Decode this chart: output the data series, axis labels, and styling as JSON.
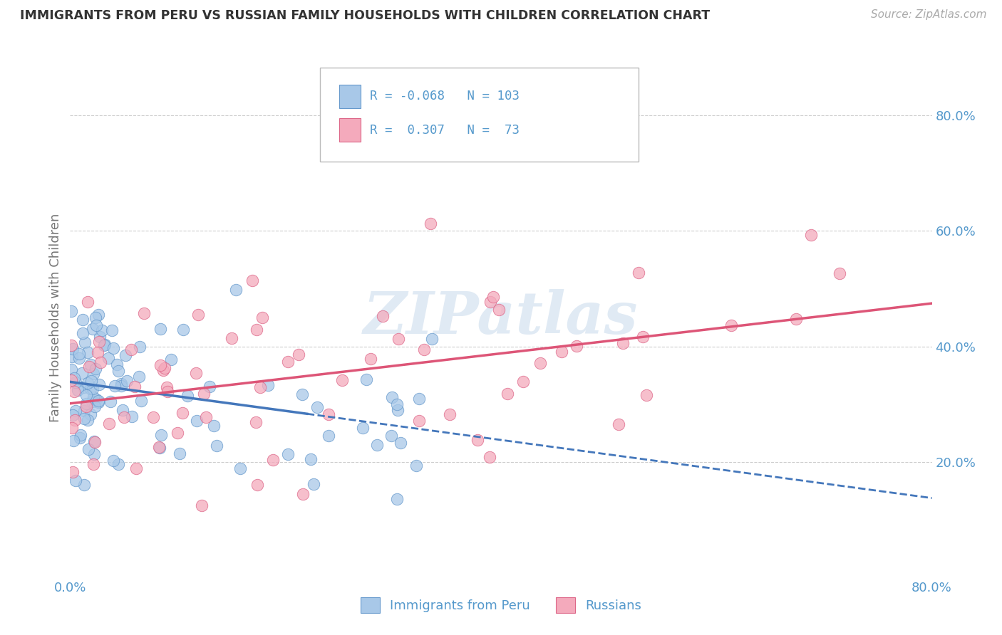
{
  "title": "IMMIGRANTS FROM PERU VS RUSSIAN FAMILY HOUSEHOLDS WITH CHILDREN CORRELATION CHART",
  "source": "Source: ZipAtlas.com",
  "ylabel": "Family Households with Children",
  "color_peru": "#a8c8e8",
  "color_peru_edge": "#6699cc",
  "color_russian": "#f4aabc",
  "color_russian_edge": "#dd6688",
  "color_line_peru": "#4477bb",
  "color_line_russian": "#dd5577",
  "background_color": "#ffffff",
  "grid_color": "#cccccc",
  "tick_color": "#5599cc",
  "watermark_color": "#e0eaf4",
  "xlim": [
    0.0,
    0.8
  ],
  "ylim": [
    0.0,
    0.9
  ],
  "ytick_right_positions": [
    0.2,
    0.4,
    0.6,
    0.8
  ],
  "ytick_right_labels": [
    "20.0%",
    "40.0%",
    "60.0%",
    "80.0%"
  ],
  "xtick_positions": [
    0.0,
    0.8
  ],
  "xtick_labels": [
    "0.0%",
    "80.0%"
  ],
  "legend_items": [
    {
      "label": "R = -0.068   N = 103",
      "color": "#a8c8e8",
      "edge": "#6699cc"
    },
    {
      "label": "R =  0.307   N =  73",
      "color": "#f4aabc",
      "edge": "#dd6688"
    }
  ],
  "bottom_legend": [
    "Immigrants from Peru",
    "Russians"
  ],
  "watermark": "ZIPatlas",
  "peru_seed": 7,
  "russian_seed": 13
}
